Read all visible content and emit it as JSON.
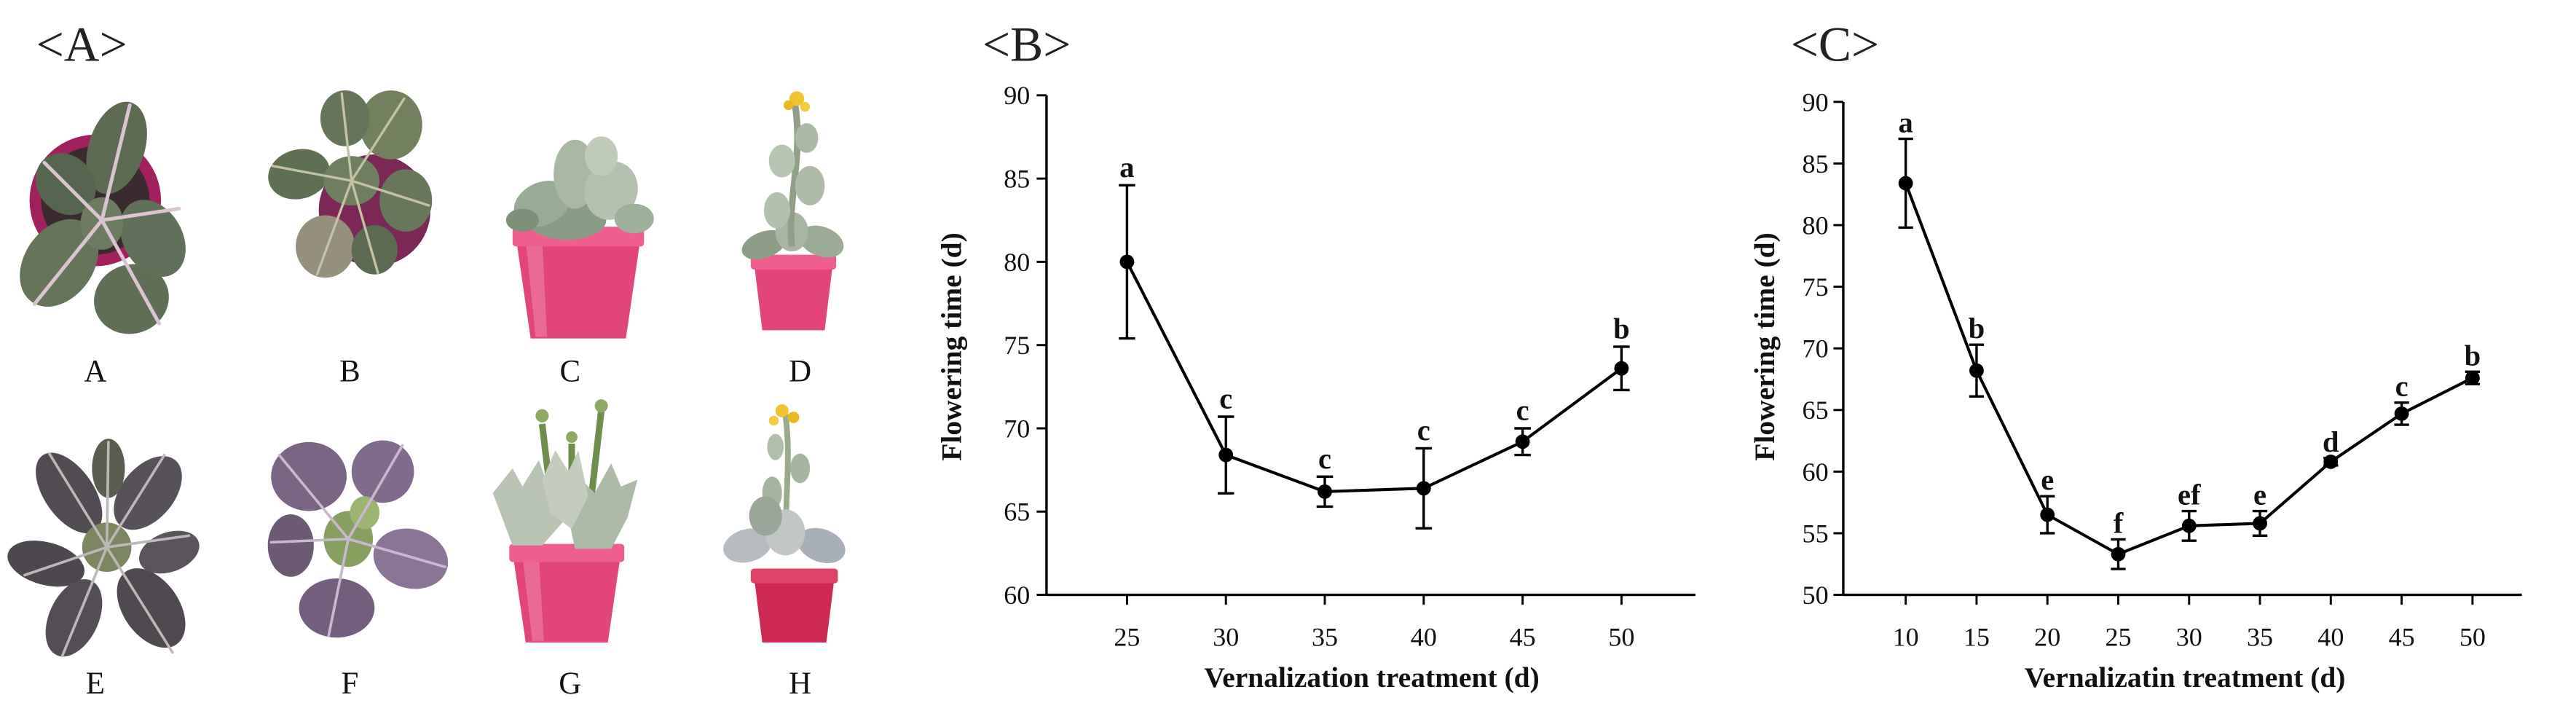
{
  "panels": {
    "a": {
      "label": "<A>",
      "plants": [
        "A",
        "B",
        "C",
        "D",
        "E",
        "F",
        "G",
        "H"
      ]
    },
    "b": {
      "label": "<B>"
    },
    "c": {
      "label": "<C>"
    }
  },
  "colors": {
    "series": "#000000"
  },
  "chart_data": [
    {
      "type": "line",
      "categories": [
        "25",
        "30",
        "35",
        "40",
        "45",
        "50"
      ],
      "values": [
        80.0,
        68.4,
        66.2,
        66.4,
        69.2,
        73.6
      ],
      "error_bars": [
        4.6,
        2.3,
        0.9,
        2.4,
        0.8,
        1.3
      ],
      "significance_letters": [
        "a",
        "c",
        "c",
        "c",
        "c",
        "b"
      ],
      "xlabel": "Vernalization treatment (d)",
      "ylabel": "Flowering time (d)",
      "ylim": [
        60,
        90
      ],
      "yticks": [
        60,
        65,
        70,
        75,
        80,
        85,
        90
      ],
      "grid": false
    },
    {
      "type": "line",
      "categories": [
        "10",
        "15",
        "20",
        "25",
        "30",
        "35",
        "40",
        "45",
        "50"
      ],
      "values": [
        83.4,
        68.2,
        56.5,
        53.3,
        55.6,
        55.8,
        60.8,
        64.7,
        67.6
      ],
      "error_bars": [
        3.6,
        2.1,
        1.5,
        1.2,
        1.2,
        1.0,
        0.3,
        0.9,
        0.5
      ],
      "significance_letters": [
        "a",
        "b",
        "e",
        "f",
        "ef",
        "e",
        "d",
        "c",
        "b"
      ],
      "xlabel": "Vernalizatin treatment (d)",
      "ylabel": "Flowering time (d)",
      "ylim": [
        50,
        90
      ],
      "yticks": [
        50,
        55,
        60,
        65,
        70,
        75,
        80,
        85,
        90
      ],
      "grid": false
    }
  ]
}
